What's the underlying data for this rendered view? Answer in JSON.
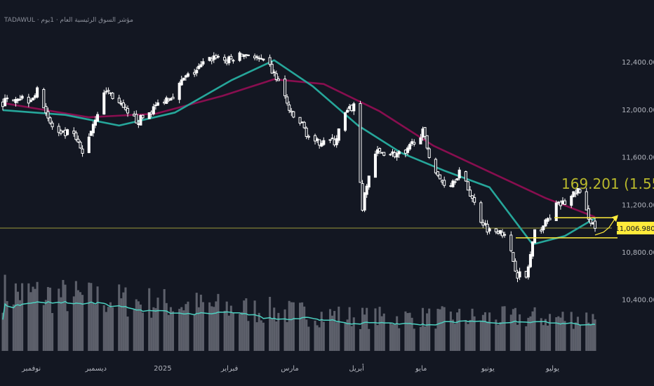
{
  "header": {
    "title": "TADAWUL · مؤشر السوق الرئيسية العام · 1يوم"
  },
  "chart_data": {
    "type": "candlestick",
    "title": "TADAWUL · مؤشر السوق الرئيسية العام · 1يوم",
    "y_axis": {
      "ticks": [
        "10,400.000",
        "10,800.000",
        "11,200.000",
        "11,600.000",
        "12,000.000",
        "12,400.000"
      ],
      "tick_values": [
        10400,
        10800,
        11200,
        11600,
        12000,
        12400
      ],
      "range": [
        10150,
        12750
      ],
      "side": "right"
    },
    "x_axis": {
      "labels": [
        "نوفمبر",
        "ديسمبر",
        "2025",
        "فبراير",
        "مارس",
        "أبريل",
        "مايو",
        "يونيو",
        "يوليو"
      ],
      "start": "2024-10-22",
      "end": "2025-07-24",
      "label_dates": [
        "2024-11-01",
        "2024-12-01",
        "2025-01-01",
        "2025-02-01",
        "2025-03-01",
        "2025-04-01",
        "2025-05-01",
        "2025-06-01",
        "2025-07-01"
      ]
    },
    "current_price": {
      "label": "11,006.980",
      "value": 11006.98
    },
    "measurement": {
      "label": "169.201 (1.55",
      "from_value": 10925,
      "to_value": 11094
    },
    "price_points": [
      [
        "2024-10-22",
        12060
      ],
      [
        "2024-10-28",
        12120
      ],
      [
        "2024-11-03",
        12090
      ],
      [
        "2024-11-08",
        12170
      ],
      [
        "2024-11-13",
        11880
      ],
      [
        "2024-11-18",
        11780
      ],
      [
        "2024-11-23",
        11820
      ],
      [
        "2024-11-28",
        11630
      ],
      [
        "2024-12-04",
        11940
      ],
      [
        "2024-12-09",
        12170
      ],
      [
        "2024-12-14",
        12080
      ],
      [
        "2024-12-19",
        11950
      ],
      [
        "2024-12-24",
        11910
      ],
      [
        "2024-12-29",
        11980
      ],
      [
        "2025-01-04",
        12080
      ],
      [
        "2025-01-09",
        12130
      ],
      [
        "2025-01-14",
        12260
      ],
      [
        "2025-01-19",
        12320
      ],
      [
        "2025-01-24",
        12400
      ],
      [
        "2025-01-29",
        12460
      ],
      [
        "2025-02-03",
        12410
      ],
      [
        "2025-02-08",
        12450
      ],
      [
        "2025-02-13",
        12480
      ],
      [
        "2025-02-18",
        12420
      ],
      [
        "2025-02-23",
        12360
      ],
      [
        "2025-02-28",
        12210
      ],
      [
        "2025-03-05",
        11950
      ],
      [
        "2025-03-10",
        11880
      ],
      [
        "2025-03-15",
        11700
      ],
      [
        "2025-03-20",
        11760
      ],
      [
        "2025-03-25",
        11730
      ],
      [
        "2025-03-30",
        11960
      ],
      [
        "2025-04-03",
        12040
      ],
      [
        "2025-04-07",
        11180
      ],
      [
        "2025-04-12",
        11630
      ],
      [
        "2025-04-17",
        11650
      ],
      [
        "2025-04-22",
        11630
      ],
      [
        "2025-04-27",
        11620
      ],
      [
        "2025-05-02",
        11780
      ],
      [
        "2025-05-05",
        11810
      ],
      [
        "2025-05-08",
        11630
      ],
      [
        "2025-05-12",
        11430
      ],
      [
        "2025-05-17",
        11360
      ],
      [
        "2025-05-22",
        11480
      ],
      [
        "2025-05-27",
        11300
      ],
      [
        "2025-06-01",
        11080
      ],
      [
        "2025-06-06",
        10960
      ],
      [
        "2025-06-10",
        11010
      ],
      [
        "2025-06-14",
        10850
      ],
      [
        "2025-06-18",
        10620
      ],
      [
        "2025-06-22",
        10590
      ],
      [
        "2025-06-26",
        10960
      ],
      [
        "2025-07-01",
        11050
      ],
      [
        "2025-07-06",
        11190
      ],
      [
        "2025-07-11",
        11230
      ],
      [
        "2025-07-16",
        11330
      ],
      [
        "2025-07-20",
        11140
      ],
      [
        "2025-07-24",
        11010
      ]
    ],
    "series": [
      {
        "name": "",
        "color": "#880e4f",
        "points": [
          [
            "2024-10-22",
            12060
          ],
          [
            "2024-12-01",
            11940
          ],
          [
            "2025-01-01",
            11970
          ],
          [
            "2025-02-01",
            12120
          ],
          [
            "2025-02-25",
            12260
          ],
          [
            "2025-03-20",
            12220
          ],
          [
            "2025-04-15",
            11990
          ],
          [
            "2025-05-10",
            11700
          ],
          [
            "2025-06-05",
            11480
          ],
          [
            "2025-07-01",
            11260
          ],
          [
            "2025-07-24",
            11100
          ]
        ]
      },
      {
        "name": "",
        "color": "#26a69a",
        "points": [
          [
            "2024-10-22",
            12000
          ],
          [
            "2024-11-20",
            11960
          ],
          [
            "2024-12-15",
            11870
          ],
          [
            "2025-01-10",
            11980
          ],
          [
            "2025-02-05",
            12250
          ],
          [
            "2025-02-25",
            12420
          ],
          [
            "2025-03-15",
            12200
          ],
          [
            "2025-04-05",
            11870
          ],
          [
            "2025-04-25",
            11640
          ],
          [
            "2025-05-15",
            11490
          ],
          [
            "2025-06-05",
            11350
          ],
          [
            "2025-06-25",
            10870
          ],
          [
            "2025-07-10",
            10940
          ],
          [
            "2025-07-24",
            11090
          ]
        ]
      }
    ],
    "volume": {
      "color": "#5d606b",
      "avg_color": "#4dd0c0"
    },
    "grid": false,
    "colors": {
      "background": "#131722",
      "candle": "#ffffff",
      "highlight": "#ffeb3b",
      "price_line": "#9e9a3a",
      "measure_text": "#b9b92c"
    }
  }
}
